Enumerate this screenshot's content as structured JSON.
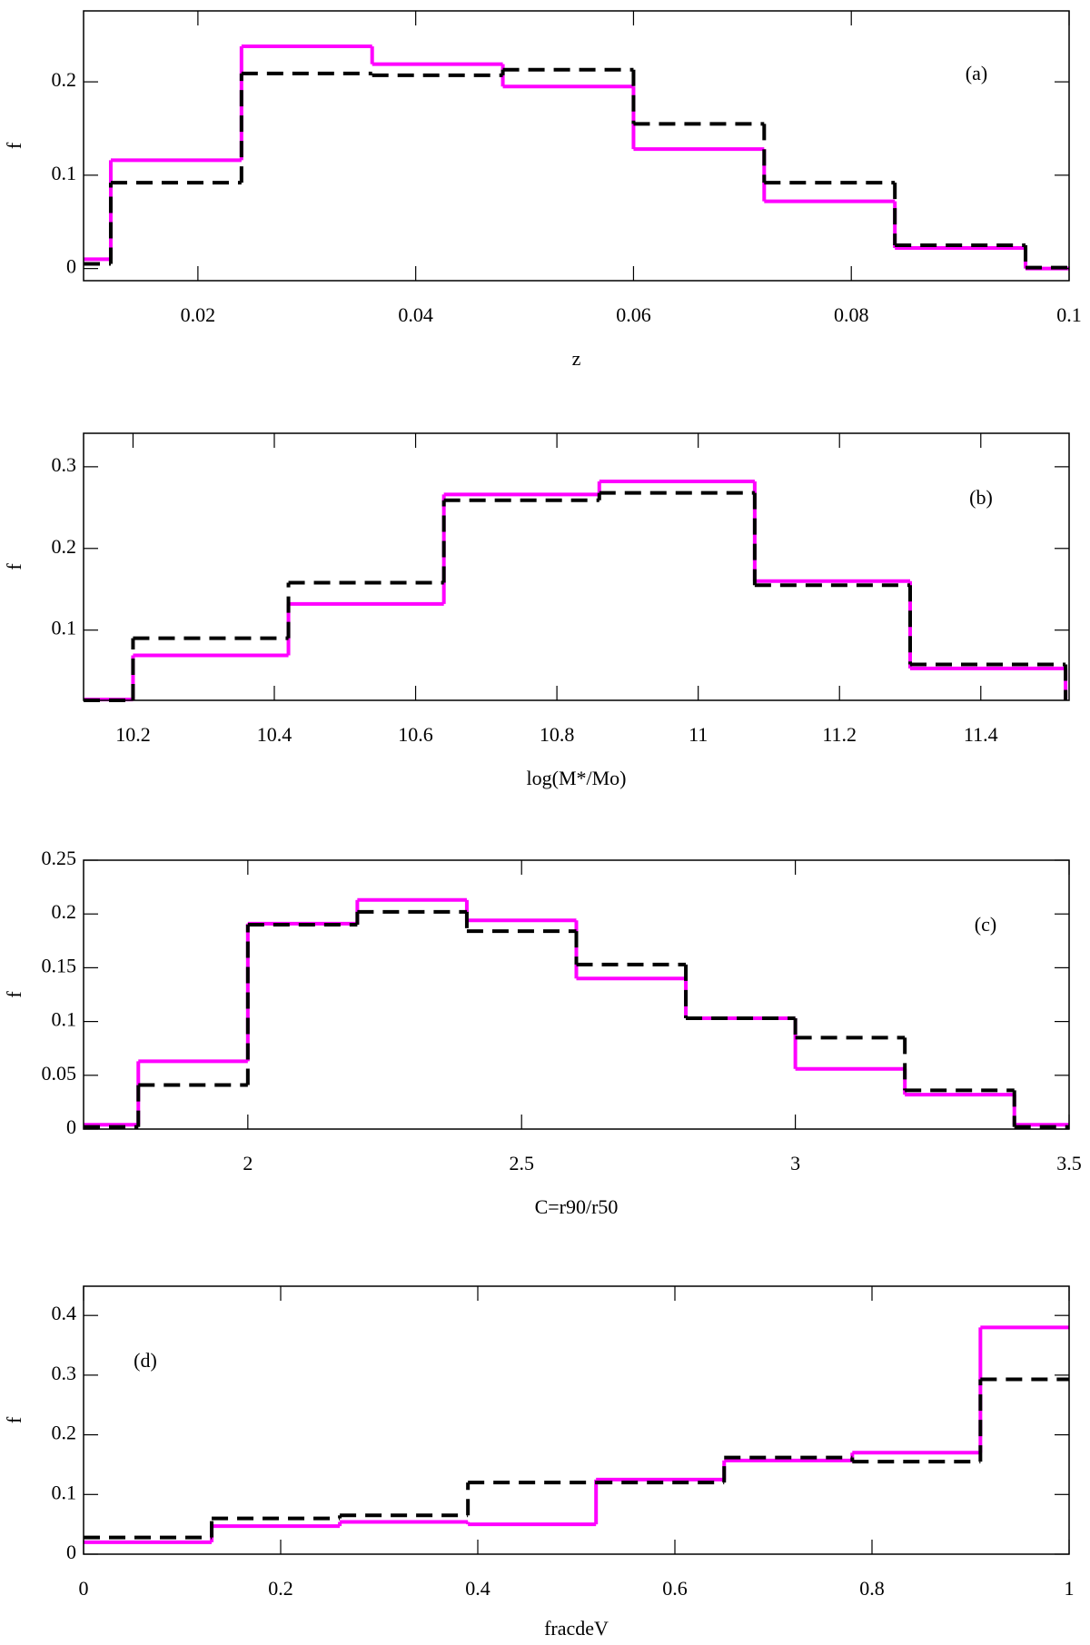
{
  "chart_data": [
    {
      "type": "histogram",
      "annotation": "(a)",
      "xlabel": "z",
      "ylabel": "f",
      "bins": [
        0.0095,
        0.012,
        0.024,
        0.036,
        0.048,
        0.06,
        0.072,
        0.084,
        0.096,
        0.1
      ],
      "series": [
        {
          "color": "#ff00ff",
          "dash": false,
          "values": [
            0.01,
            0.116,
            0.238,
            0.219,
            0.195,
            0.128,
            0.072,
            0.022,
            0.0
          ]
        },
        {
          "color": "#000000",
          "dash": true,
          "values": [
            0.005,
            0.092,
            0.209,
            0.207,
            0.213,
            0.155,
            0.092,
            0.025,
            0.001
          ]
        }
      ],
      "xlim": [
        0.0095,
        0.1
      ],
      "xticks": [
        0.02,
        0.04,
        0.06,
        0.08,
        0.1
      ],
      "ylim": [
        -0.013,
        0.276
      ],
      "yticks": [
        0,
        0.1,
        0.2
      ]
    },
    {
      "type": "histogram",
      "annotation": "(b)",
      "xlabel": "log(M*/Mo)",
      "ylabel": "f",
      "bins": [
        10.13,
        10.2,
        10.42,
        10.64,
        10.86,
        11.08,
        11.3,
        11.52
      ],
      "series": [
        {
          "color": "#ff00ff",
          "dash": false,
          "values": [
            0.015,
            0.069,
            0.132,
            0.266,
            0.282,
            0.16,
            0.053
          ]
        },
        {
          "color": "#000000",
          "dash": true,
          "values": [
            0.014,
            0.09,
            0.158,
            0.259,
            0.268,
            0.155,
            0.058
          ]
        }
      ],
      "xlim": [
        10.13,
        11.525
      ],
      "xticks": [
        10.2,
        10.4,
        10.6,
        10.8,
        11,
        11.2,
        11.4
      ],
      "ylim": [
        0.014,
        0.341
      ],
      "yticks": [
        0.1,
        0.2,
        0.3
      ]
    },
    {
      "type": "histogram",
      "annotation": "(c)",
      "xlabel": "C=r90/r50",
      "ylabel": "f",
      "bins": [
        1.7,
        1.8,
        2.0,
        2.2,
        2.4,
        2.6,
        2.8,
        3.0,
        3.2,
        3.4,
        3.5
      ],
      "series": [
        {
          "color": "#ff00ff",
          "dash": false,
          "values": [
            0.004,
            0.063,
            0.191,
            0.213,
            0.194,
            0.14,
            0.103,
            0.056,
            0.032,
            0.004
          ]
        },
        {
          "color": "#000000",
          "dash": true,
          "values": [
            0.002,
            0.041,
            0.19,
            0.202,
            0.184,
            0.153,
            0.103,
            0.085,
            0.036,
            0.002
          ]
        }
      ],
      "xlim": [
        1.7,
        3.5
      ],
      "xticks": [
        2,
        2.5,
        3,
        3.5
      ],
      "ylim": [
        0,
        0.25
      ],
      "yticks": [
        0,
        0.05,
        0.1,
        0.15,
        0.2,
        0.25
      ]
    },
    {
      "type": "histogram",
      "annotation": "(d)",
      "xlabel": "fracdeV",
      "ylabel": "f",
      "bins": [
        0,
        0.13,
        0.26,
        0.39,
        0.52,
        0.65,
        0.78,
        0.91,
        1.0
      ],
      "series": [
        {
          "color": "#ff00ff",
          "dash": false,
          "values": [
            0.02,
            0.047,
            0.054,
            0.05,
            0.125,
            0.157,
            0.17,
            0.38
          ]
        },
        {
          "color": "#000000",
          "dash": true,
          "values": [
            0.028,
            0.06,
            0.065,
            0.12,
            0.12,
            0.162,
            0.155,
            0.293
          ]
        }
      ],
      "xlim": [
        0,
        1.0
      ],
      "xticks": [
        0,
        0.2,
        0.4,
        0.6,
        0.8,
        1
      ],
      "ylim": [
        0,
        0.449
      ],
      "yticks": [
        0,
        0.1,
        0.2,
        0.3,
        0.4
      ]
    }
  ]
}
